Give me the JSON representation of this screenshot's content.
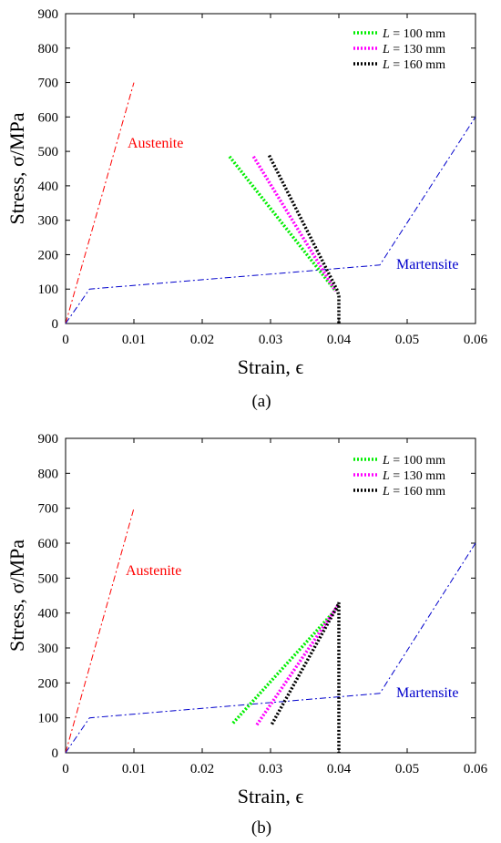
{
  "chart_data": [
    {
      "type": "line",
      "caption": "(a)",
      "xlabel": "Strain, ϵ",
      "ylabel": "Stress, σ/MPa",
      "xlim": [
        0,
        0.06
      ],
      "ylim": [
        0,
        900
      ],
      "xticks": [
        "0",
        "0.01",
        "0.02",
        "0.03",
        "0.04",
        "0.05",
        "0.06"
      ],
      "yticks": [
        "0",
        "100",
        "200",
        "300",
        "400",
        "500",
        "600",
        "700",
        "800",
        "900"
      ],
      "annotations": [
        {
          "text": "Austenite",
          "color": "#ff0000"
        },
        {
          "text": "Martensite",
          "color": "#0000cc"
        }
      ],
      "series": [
        {
          "style": "dashdot",
          "color": "#ff0000",
          "x": [
            0,
            0.01
          ],
          "y": [
            0,
            700
          ]
        },
        {
          "style": "dashdot",
          "color": "#0000cc",
          "x": [
            0,
            0.0035,
            0.046,
            0.06
          ],
          "y": [
            0,
            100,
            170,
            600
          ]
        },
        {
          "name": "L = 100 mm",
          "style": "dotted",
          "color": "#00ee00",
          "x": [
            0.024,
            0.0395
          ],
          "y": [
            485,
            95
          ]
        },
        {
          "name": "L = 130 mm",
          "style": "dotted",
          "color": "#ff00ff",
          "x": [
            0.0275,
            0.0395
          ],
          "y": [
            485,
            95
          ]
        },
        {
          "name": "L = 160 mm",
          "style": "dotted",
          "color": "#000000",
          "x": [
            0.0298,
            0.0398,
            0.04,
            0.04
          ],
          "y": [
            488,
            95,
            80,
            0
          ]
        }
      ],
      "legend": {
        "position": "top-right",
        "entries": [
          {
            "prefix": "L",
            "text": " = 100 mm",
            "color": "#00ee00"
          },
          {
            "prefix": "L",
            "text": " = 130 mm",
            "color": "#ff00ff"
          },
          {
            "prefix": "L",
            "text": " = 160 mm",
            "color": "#000000"
          }
        ]
      }
    },
    {
      "type": "line",
      "caption": "(b)",
      "xlabel": "Strain, ϵ",
      "ylabel": "Stress, σ/MPa",
      "xlim": [
        0,
        0.06
      ],
      "ylim": [
        0,
        900
      ],
      "xticks": [
        "0",
        "0.01",
        "0.02",
        "0.03",
        "0.04",
        "0.05",
        "0.06"
      ],
      "yticks": [
        "0",
        "100",
        "200",
        "300",
        "400",
        "500",
        "600",
        "700",
        "800",
        "900"
      ],
      "annotations": [
        {
          "text": "Austenite",
          "color": "#ff0000"
        },
        {
          "text": "Martensite",
          "color": "#0000cc"
        }
      ],
      "series": [
        {
          "style": "dashdot",
          "color": "#ff0000",
          "x": [
            0,
            0.01
          ],
          "y": [
            0,
            700
          ]
        },
        {
          "style": "dashdot",
          "color": "#0000cc",
          "x": [
            0,
            0.0035,
            0.046,
            0.06
          ],
          "y": [
            0,
            100,
            170,
            600
          ]
        },
        {
          "name": "L = 100 mm",
          "style": "dotted",
          "color": "#00ee00",
          "x": [
            0.0245,
            0.0398
          ],
          "y": [
            85,
            415
          ]
        },
        {
          "name": "L = 130 mm",
          "style": "dotted",
          "color": "#ff00ff",
          "x": [
            0.028,
            0.0398
          ],
          "y": [
            80,
            420
          ]
        },
        {
          "name": "L = 160 mm",
          "style": "dotted",
          "color": "#000000",
          "x": [
            0.0302,
            0.0398,
            0.04,
            0.04
          ],
          "y": [
            82,
            420,
            430,
            0
          ]
        }
      ],
      "legend": {
        "position": "top-right",
        "entries": [
          {
            "prefix": "L",
            "text": " = 100 mm",
            "color": "#00ee00"
          },
          {
            "prefix": "L",
            "text": " = 130 mm",
            "color": "#ff00ff"
          },
          {
            "prefix": "L",
            "text": " = 160 mm",
            "color": "#000000"
          }
        ]
      }
    }
  ]
}
